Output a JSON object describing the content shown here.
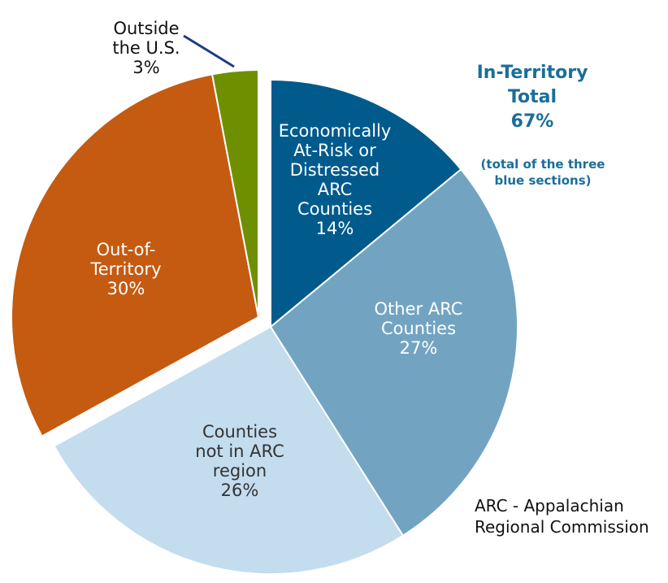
{
  "chart_data": {
    "type": "pie",
    "categories": [
      "Economically\nAt-Risk or\nDistressed\nARC\nCounties",
      "Other ARC\nCounties",
      "Counties\nnot in ARC\nregion",
      "Out-of-\nTerritory",
      "Outside\nthe U.S."
    ],
    "values": [
      14,
      27,
      26,
      30,
      3
    ],
    "value_labels": [
      "14%",
      "27%",
      "26%",
      "30%",
      "3%"
    ],
    "colors": [
      "#005a8c",
      "#72a4c2",
      "#c3dcee",
      "#c55a11",
      "#6e9000"
    ],
    "exploded": [
      false,
      false,
      false,
      true,
      true
    ],
    "annotations": [
      "In-Territory\nTotal\n67%",
      "(total of the three\nblue sections)",
      "ARC - Appalachian\nRegional Commission"
    ]
  }
}
